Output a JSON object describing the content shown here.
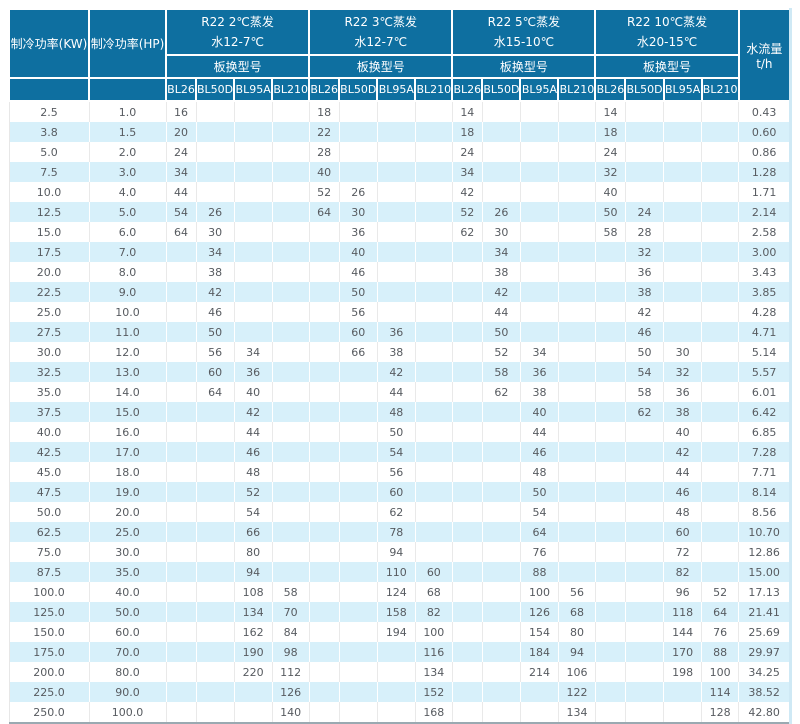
{
  "colors": {
    "header_bg": "#0e6fa0",
    "header_text": "#ffffff",
    "alt_row_bg": "#d7f0fa",
    "body_text": "#575b60"
  },
  "table": {
    "header": {
      "kw": "制冷功率(KW)",
      "hp": "制冷功率(HP)",
      "flow": "水流量t/h",
      "model_label": "板换型号",
      "models": [
        "BL26",
        "BL50D",
        "BL95A",
        "BL210"
      ],
      "groups": [
        {
          "title": "R22 2℃蒸发",
          "subtitle": "水12-7℃"
        },
        {
          "title": "R22 3℃蒸发",
          "subtitle": "水12-7℃"
        },
        {
          "title": "R22 5℃蒸发",
          "subtitle": "水15-10℃"
        },
        {
          "title": "R22 10℃蒸发",
          "subtitle": "水20-15℃"
        }
      ]
    },
    "rows": [
      [
        "2.5",
        "1.0",
        "16",
        "",
        "",
        "",
        "18",
        "",
        "",
        "",
        "14",
        "",
        "",
        "",
        "14",
        "",
        "",
        "",
        "0.43"
      ],
      [
        "3.8",
        "1.5",
        "20",
        "",
        "",
        "",
        "22",
        "",
        "",
        "",
        "18",
        "",
        "",
        "",
        "18",
        "",
        "",
        "",
        "0.60"
      ],
      [
        "5.0",
        "2.0",
        "24",
        "",
        "",
        "",
        "28",
        "",
        "",
        "",
        "24",
        "",
        "",
        "",
        "24",
        "",
        "",
        "",
        "0.86"
      ],
      [
        "7.5",
        "3.0",
        "34",
        "",
        "",
        "",
        "40",
        "",
        "",
        "",
        "34",
        "",
        "",
        "",
        "32",
        "",
        "",
        "",
        "1.28"
      ],
      [
        "10.0",
        "4.0",
        "44",
        "",
        "",
        "",
        "52",
        "26",
        "",
        "",
        "42",
        "",
        "",
        "",
        "40",
        "",
        "",
        "",
        "1.71"
      ],
      [
        "12.5",
        "5.0",
        "54",
        "26",
        "",
        "",
        "64",
        "30",
        "",
        "",
        "52",
        "26",
        "",
        "",
        "50",
        "24",
        "",
        "",
        "2.14"
      ],
      [
        "15.0",
        "6.0",
        "64",
        "30",
        "",
        "",
        "",
        "36",
        "",
        "",
        "62",
        "30",
        "",
        "",
        "58",
        "28",
        "",
        "",
        "2.58"
      ],
      [
        "17.5",
        "7.0",
        "",
        "34",
        "",
        "",
        "",
        "40",
        "",
        "",
        "",
        "34",
        "",
        "",
        "",
        "32",
        "",
        "",
        "3.00"
      ],
      [
        "20.0",
        "8.0",
        "",
        "38",
        "",
        "",
        "",
        "46",
        "",
        "",
        "",
        "38",
        "",
        "",
        "",
        "36",
        "",
        "",
        "3.43"
      ],
      [
        "22.5",
        "9.0",
        "",
        "42",
        "",
        "",
        "",
        "50",
        "",
        "",
        "",
        "42",
        "",
        "",
        "",
        "38",
        "",
        "",
        "3.85"
      ],
      [
        "25.0",
        "10.0",
        "",
        "46",
        "",
        "",
        "",
        "56",
        "",
        "",
        "",
        "44",
        "",
        "",
        "",
        "42",
        "",
        "",
        "4.28"
      ],
      [
        "27.5",
        "11.0",
        "",
        "50",
        "",
        "",
        "",
        "60",
        "36",
        "",
        "",
        "50",
        "",
        "",
        "",
        "46",
        "",
        "",
        "4.71"
      ],
      [
        "30.0",
        "12.0",
        "",
        "56",
        "34",
        "",
        "",
        "66",
        "38",
        "",
        "",
        "52",
        "34",
        "",
        "",
        "50",
        "30",
        "",
        "5.14"
      ],
      [
        "32.5",
        "13.0",
        "",
        "60",
        "36",
        "",
        "",
        "",
        "42",
        "",
        "",
        "58",
        "36",
        "",
        "",
        "54",
        "32",
        "",
        "5.57"
      ],
      [
        "35.0",
        "14.0",
        "",
        "64",
        "40",
        "",
        "",
        "",
        "44",
        "",
        "",
        "62",
        "38",
        "",
        "",
        "58",
        "36",
        "",
        "6.01"
      ],
      [
        "37.5",
        "15.0",
        "",
        "",
        "42",
        "",
        "",
        "",
        "48",
        "",
        "",
        "",
        "40",
        "",
        "",
        "62",
        "38",
        "",
        "6.42"
      ],
      [
        "40.0",
        "16.0",
        "",
        "",
        "44",
        "",
        "",
        "",
        "50",
        "",
        "",
        "",
        "44",
        "",
        "",
        "",
        "40",
        "",
        "6.85"
      ],
      [
        "42.5",
        "17.0",
        "",
        "",
        "46",
        "",
        "",
        "",
        "54",
        "",
        "",
        "",
        "46",
        "",
        "",
        "",
        "42",
        "",
        "7.28"
      ],
      [
        "45.0",
        "18.0",
        "",
        "",
        "48",
        "",
        "",
        "",
        "56",
        "",
        "",
        "",
        "48",
        "",
        "",
        "",
        "44",
        "",
        "7.71"
      ],
      [
        "47.5",
        "19.0",
        "",
        "",
        "52",
        "",
        "",
        "",
        "60",
        "",
        "",
        "",
        "50",
        "",
        "",
        "",
        "46",
        "",
        "8.14"
      ],
      [
        "50.0",
        "20.0",
        "",
        "",
        "54",
        "",
        "",
        "",
        "62",
        "",
        "",
        "",
        "54",
        "",
        "",
        "",
        "48",
        "",
        "8.56"
      ],
      [
        "62.5",
        "25.0",
        "",
        "",
        "66",
        "",
        "",
        "",
        "78",
        "",
        "",
        "",
        "64",
        "",
        "",
        "",
        "60",
        "",
        "10.70"
      ],
      [
        "75.0",
        "30.0",
        "",
        "",
        "80",
        "",
        "",
        "",
        "94",
        "",
        "",
        "",
        "76",
        "",
        "",
        "",
        "72",
        "",
        "12.86"
      ],
      [
        "87.5",
        "35.0",
        "",
        "",
        "94",
        "",
        "",
        "",
        "110",
        "60",
        "",
        "",
        "88",
        "",
        "",
        "",
        "82",
        "",
        "15.00"
      ],
      [
        "100.0",
        "40.0",
        "",
        "",
        "108",
        "58",
        "",
        "",
        "124",
        "68",
        "",
        "",
        "100",
        "56",
        "",
        "",
        "96",
        "52",
        "17.13"
      ],
      [
        "125.0",
        "50.0",
        "",
        "",
        "134",
        "70",
        "",
        "",
        "158",
        "82",
        "",
        "",
        "126",
        "68",
        "",
        "",
        "118",
        "64",
        "21.41"
      ],
      [
        "150.0",
        "60.0",
        "",
        "",
        "162",
        "84",
        "",
        "",
        "194",
        "100",
        "",
        "",
        "154",
        "80",
        "",
        "",
        "144",
        "76",
        "25.69"
      ],
      [
        "175.0",
        "70.0",
        "",
        "",
        "190",
        "98",
        "",
        "",
        "",
        "116",
        "",
        "",
        "184",
        "94",
        "",
        "",
        "170",
        "88",
        "29.97"
      ],
      [
        "200.0",
        "80.0",
        "",
        "",
        "220",
        "112",
        "",
        "",
        "",
        "134",
        "",
        "",
        "214",
        "106",
        "",
        "",
        "198",
        "100",
        "34.25"
      ],
      [
        "225.0",
        "90.0",
        "",
        "",
        "",
        "126",
        "",
        "",
        "",
        "152",
        "",
        "",
        "",
        "122",
        "",
        "",
        "",
        "114",
        "38.52"
      ],
      [
        "250.0",
        "100.0",
        "",
        "",
        "",
        "140",
        "",
        "",
        "",
        "168",
        "",
        "",
        "",
        "134",
        "",
        "",
        "",
        "128",
        "42.80"
      ]
    ]
  }
}
